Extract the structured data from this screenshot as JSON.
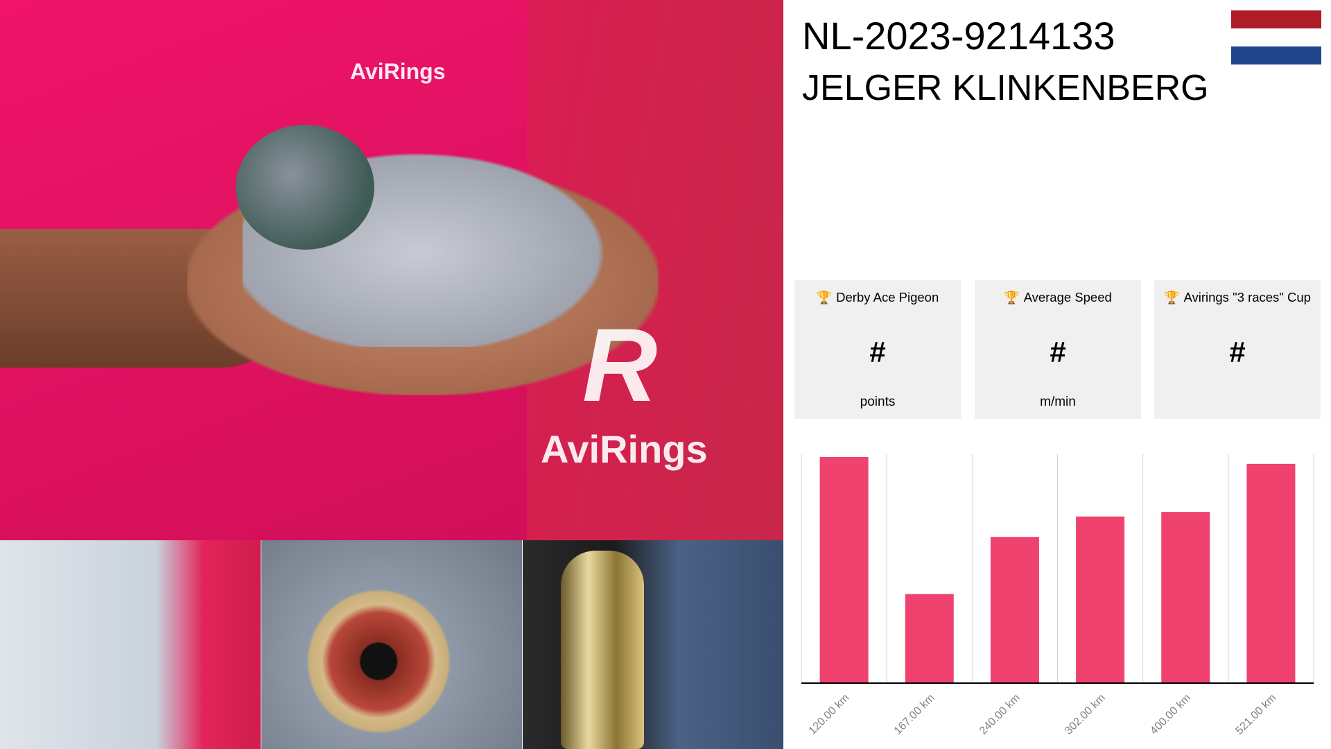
{
  "header": {
    "ring_number": "NL-2023-9214133",
    "owner": "JELGER KLINKENBERG",
    "flag": {
      "country": "Netherlands",
      "colors": [
        "#ae1c28",
        "#ffffff",
        "#21468b"
      ]
    }
  },
  "photos": {
    "main": {
      "logo_text": "AviRings",
      "shirt_logo": "AviRings"
    },
    "thumbnails": [
      "wing",
      "eye",
      "trophy"
    ]
  },
  "cards": [
    {
      "icon": "trophy-icon",
      "title": "Derby Ace Pigeon",
      "value": "#",
      "unit": "points"
    },
    {
      "icon": "trophy-icon",
      "title": "Average Speed",
      "value": "#",
      "unit": "m/min"
    },
    {
      "icon": "trophy-icon",
      "title": "Avirings \"3 races\" Cup",
      "value": "#",
      "unit": ""
    }
  ],
  "colors": {
    "accent": "#ef426f",
    "card_bg": "#f0f0f0",
    "tick_label": "#808080"
  },
  "chart_data": {
    "type": "bar",
    "categories": [
      "120.00 km",
      "167.00 km",
      "240.00 km",
      "302.00 km",
      "400.00 km",
      "521.00 km"
    ],
    "values": [
      98.8,
      38.9,
      63.9,
      72.8,
      74.8,
      95.8
    ],
    "ylim": [
      0,
      100
    ],
    "grid": "vertical",
    "xlabel": "",
    "ylabel": "",
    "color": "#ef426f"
  }
}
